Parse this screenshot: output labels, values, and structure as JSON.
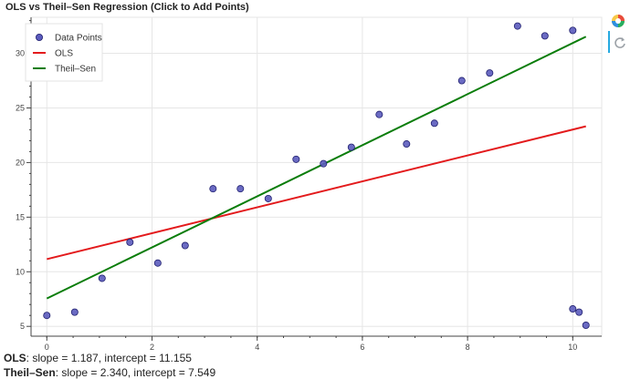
{
  "title": "OLS vs Theil–Sen Regression (Click to Add Points)",
  "stats": {
    "ols_label": "OLS",
    "ols_text": ": slope = 1.187, intercept = 11.155",
    "ts_label": "Theil–Sen",
    "ts_text": ": slope = 2.340, intercept = 7.549"
  },
  "toolbar": {
    "logo_icon": "bokeh-logo-icon",
    "reset_icon": "reset-tool-icon"
  },
  "chart_data": {
    "type": "scatter",
    "xlim": [
      -0.3,
      10.55
    ],
    "ylim": [
      4.1,
      33.3
    ],
    "xticks": [
      0,
      2,
      4,
      6,
      8,
      10
    ],
    "yticks": [
      5,
      10,
      15,
      20,
      25,
      30
    ],
    "grid": true,
    "legend_position": "top-left",
    "series": [
      {
        "name": "Data Points",
        "kind": "scatter",
        "color": "#5b5bbd",
        "x": [
          0.0,
          0.53,
          1.05,
          1.58,
          2.11,
          2.63,
          3.16,
          3.68,
          4.21,
          4.74,
          5.26,
          5.79,
          6.32,
          6.84,
          7.37,
          7.89,
          8.42,
          8.95,
          9.47,
          10.0,
          10.0,
          10.12,
          10.25
        ],
        "y": [
          6.0,
          6.3,
          9.4,
          12.7,
          10.8,
          12.4,
          17.6,
          17.6,
          16.7,
          20.3,
          19.9,
          21.4,
          24.4,
          21.7,
          23.6,
          27.5,
          28.2,
          32.5,
          31.6,
          32.1,
          6.6,
          6.3,
          5.1
        ]
      },
      {
        "name": "OLS",
        "kind": "line",
        "color": "#e31a1c",
        "x": [
          0,
          10.25
        ],
        "y": [
          11.155,
          23.32
        ]
      },
      {
        "name": "Theil–Sen",
        "kind": "line",
        "color": "#0a7d0a",
        "x": [
          0,
          10.25
        ],
        "y": [
          7.549,
          31.53
        ]
      }
    ]
  }
}
